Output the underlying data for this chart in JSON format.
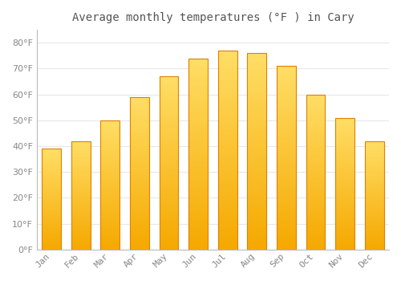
{
  "title": "Average monthly temperatures (°F ) in Cary",
  "months": [
    "Jan",
    "Feb",
    "Mar",
    "Apr",
    "May",
    "Jun",
    "Jul",
    "Aug",
    "Sep",
    "Oct",
    "Nov",
    "Dec"
  ],
  "values": [
    39,
    42,
    50,
    59,
    67,
    74,
    77,
    76,
    71,
    60,
    51,
    42
  ],
  "bar_color_bottom": "#F5A800",
  "bar_color_top": "#FFD966",
  "background_color": "#FFFFFF",
  "plot_bg_color": "#FFFFFF",
  "grid_color": "#E8E8E8",
  "text_color": "#888888",
  "title_color": "#555555",
  "ylim": [
    0,
    85
  ],
  "yticks": [
    0,
    10,
    20,
    30,
    40,
    50,
    60,
    70,
    80
  ],
  "title_fontsize": 10,
  "tick_fontsize": 8,
  "bar_width": 0.65
}
